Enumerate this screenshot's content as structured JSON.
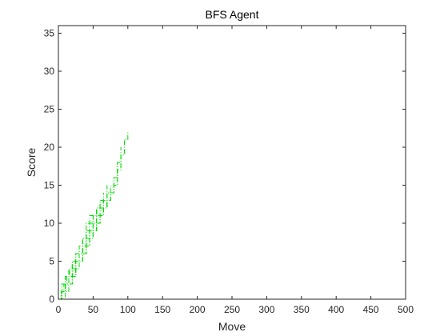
{
  "chart_data": {
    "type": "line",
    "title": "BFS Agent",
    "xlabel": "Move",
    "ylabel": "Score",
    "xlim": [
      0,
      500
    ],
    "ylim": [
      0,
      36
    ],
    "xticks": [
      0,
      50,
      100,
      150,
      200,
      250,
      300,
      350,
      400,
      450,
      500
    ],
    "yticks": [
      0,
      5,
      10,
      15,
      20,
      25,
      30,
      35
    ],
    "grid": false,
    "legend": "none",
    "line_style": "dash-dot",
    "series_color": "#00dd00",
    "series": [
      {
        "x": [
          0,
          4,
          8,
          12,
          16,
          20,
          25,
          30,
          35,
          40,
          45,
          50,
          55,
          60,
          65,
          70,
          75,
          80,
          85,
          90,
          95,
          100
        ],
        "y": [
          0,
          1,
          2,
          3,
          4,
          5,
          5,
          6,
          7,
          8,
          9,
          10,
          11,
          12,
          12,
          13,
          14,
          15,
          17,
          19,
          21,
          22
        ]
      },
      {
        "x": [
          0,
          5,
          10,
          15,
          20,
          25,
          30,
          35,
          40,
          45,
          50,
          55,
          60,
          65,
          70,
          75,
          80,
          85,
          90,
          95
        ],
        "y": [
          0,
          1,
          2,
          3,
          3,
          4,
          5,
          6,
          7,
          8,
          9,
          10,
          11,
          12,
          13,
          14,
          15,
          17,
          19,
          21
        ]
      },
      {
        "x": [
          0,
          5,
          10,
          15,
          20,
          25,
          30,
          35,
          40,
          45,
          50,
          55,
          60,
          65,
          70,
          75,
          80,
          85,
          90
        ],
        "y": [
          0,
          1,
          2,
          2,
          3,
          4,
          5,
          6,
          7,
          8,
          9,
          10,
          11,
          12,
          13,
          14,
          16,
          18,
          20
        ]
      },
      {
        "x": [
          0,
          5,
          10,
          15,
          20,
          25,
          30,
          35,
          40,
          45,
          50,
          55,
          60,
          65,
          70,
          75,
          80,
          85
        ],
        "y": [
          0,
          1,
          1,
          2,
          3,
          4,
          5,
          6,
          7,
          8,
          9,
          10,
          11,
          12,
          13,
          14,
          16,
          18
        ]
      },
      {
        "x": [
          0,
          5,
          10,
          15,
          20,
          25,
          30,
          35,
          40,
          45,
          50,
          55,
          60,
          65,
          70,
          75,
          80
        ],
        "y": [
          0,
          0,
          1,
          2,
          3,
          4,
          5,
          6,
          7,
          8,
          9,
          10,
          11,
          12,
          13,
          14,
          15
        ]
      },
      {
        "x": [
          0,
          5,
          10,
          15,
          20,
          25,
          30,
          35,
          40,
          45,
          50,
          55,
          60,
          65,
          70,
          75
        ],
        "y": [
          0,
          1,
          2,
          3,
          4,
          5,
          6,
          7,
          8,
          9,
          10,
          11,
          12,
          13,
          14,
          15
        ]
      },
      {
        "x": [
          0,
          5,
          10,
          15,
          20,
          25,
          30,
          35,
          40,
          45,
          50,
          55,
          60,
          65,
          70
        ],
        "y": [
          0,
          1,
          3,
          4,
          5,
          5,
          6,
          8,
          9,
          10,
          11,
          12,
          12,
          13,
          15
        ]
      },
      {
        "x": [
          0,
          5,
          10,
          15,
          20,
          25,
          30,
          35,
          40,
          45,
          50,
          55,
          60,
          65
        ],
        "y": [
          0,
          2,
          3,
          4,
          5,
          6,
          7,
          8,
          9,
          10,
          11,
          12,
          13,
          14
        ]
      },
      {
        "x": [
          0,
          5,
          10,
          15,
          20,
          25,
          30,
          35,
          40,
          45,
          50,
          55,
          60
        ],
        "y": [
          0,
          1,
          2,
          4,
          5,
          6,
          7,
          8,
          10,
          11,
          11,
          12,
          13
        ]
      },
      {
        "x": [
          0,
          5,
          10,
          15,
          20,
          25,
          30,
          35,
          40,
          45,
          50,
          55
        ],
        "y": [
          0,
          1,
          2,
          3,
          4,
          5,
          6,
          7,
          8,
          9,
          11,
          12
        ]
      },
      {
        "x": [
          0,
          5,
          10,
          15,
          20,
          25,
          30,
          35,
          40,
          45,
          50
        ],
        "y": [
          0,
          1,
          2,
          3,
          4,
          5,
          6,
          7,
          8,
          9,
          10
        ]
      },
      {
        "x": [
          0,
          5,
          10,
          15,
          20,
          25,
          30,
          35,
          40,
          45
        ],
        "y": [
          0,
          1,
          2,
          3,
          4,
          5,
          6,
          7,
          8,
          9
        ]
      }
    ]
  }
}
